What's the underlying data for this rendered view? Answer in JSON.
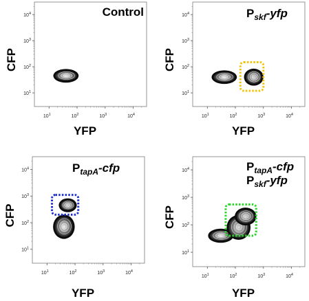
{
  "chart_data": [
    {
      "type": "contour",
      "title": "Control",
      "xlabel": "YFP",
      "ylabel": "CFP",
      "xscale": "log",
      "yscale": "log",
      "xlim": [
        3,
        30000
      ],
      "ylim": [
        3,
        30000
      ],
      "x_ticks": [
        {
          "base": "10",
          "exp": "1",
          "value": 10
        },
        {
          "base": "10",
          "exp": "2",
          "value": 100
        },
        {
          "base": "10",
          "exp": "3",
          "value": 1000
        },
        {
          "base": "10",
          "exp": "4",
          "value": 10000
        }
      ],
      "y_ticks": [
        {
          "base": "10",
          "exp": "1",
          "value": 10
        },
        {
          "base": "10",
          "exp": "2",
          "value": 100
        },
        {
          "base": "10",
          "exp": "3",
          "value": 1000
        },
        {
          "base": "10",
          "exp": "4",
          "value": 10000
        }
      ],
      "populations": [
        {
          "x_center": 40,
          "y_center": 45,
          "x_spread": 0.3,
          "y_spread": 0.15
        }
      ],
      "gate": null
    },
    {
      "type": "contour",
      "title": "P_skf-yfp",
      "title_parts": {
        "main": "P",
        "sub": "skf",
        "rest": "-yfp"
      },
      "xlabel": "YFP",
      "ylabel": "CFP",
      "xscale": "log",
      "yscale": "log",
      "xlim": [
        3,
        30000
      ],
      "ylim": [
        3,
        30000
      ],
      "x_ticks": [
        {
          "base": "10",
          "exp": "1",
          "value": 10
        },
        {
          "base": "10",
          "exp": "2",
          "value": 100
        },
        {
          "base": "10",
          "exp": "3",
          "value": 1000
        },
        {
          "base": "10",
          "exp": "4",
          "value": 10000
        }
      ],
      "y_ticks": [
        {
          "base": "10",
          "exp": "1",
          "value": 10
        },
        {
          "base": "10",
          "exp": "2",
          "value": 100
        },
        {
          "base": "10",
          "exp": "3",
          "value": 1000
        },
        {
          "base": "10",
          "exp": "4",
          "value": 10000
        }
      ],
      "populations": [
        {
          "x_center": 40,
          "y_center": 40,
          "x_spread": 0.3,
          "y_spread": 0.15
        },
        {
          "x_center": 450,
          "y_center": 40,
          "x_spread": 0.22,
          "y_spread": 0.2
        }
      ],
      "gate": {
        "x": [
          150,
          1000
        ],
        "y": [
          12,
          150
        ],
        "color": "#f2c50c"
      }
    },
    {
      "type": "contour",
      "title": "P_tapA-cfp",
      "title_parts": {
        "main": "P",
        "sub": "tapA",
        "rest": "-cfp"
      },
      "xlabel": "YFP",
      "ylabel": "CFP",
      "xscale": "log",
      "yscale": "log",
      "xlim": [
        3,
        30000
      ],
      "ylim": [
        3,
        30000
      ],
      "x_ticks": [
        {
          "base": "10",
          "exp": "1",
          "value": 10
        },
        {
          "base": "10",
          "exp": "2",
          "value": 100
        },
        {
          "base": "10",
          "exp": "3",
          "value": 1000
        },
        {
          "base": "10",
          "exp": "4",
          "value": 10000
        }
      ],
      "y_ticks": [
        {
          "base": "10",
          "exp": "1",
          "value": 10
        },
        {
          "base": "10",
          "exp": "2",
          "value": 100
        },
        {
          "base": "10",
          "exp": "3",
          "value": 1000
        },
        {
          "base": "10",
          "exp": "4",
          "value": 10000
        }
      ],
      "populations": [
        {
          "x_center": 40,
          "y_center": 70,
          "x_spread": 0.25,
          "y_spread": 0.3
        },
        {
          "x_center": 55,
          "y_center": 450,
          "x_spread": 0.2,
          "y_spread": 0.15
        }
      ],
      "gate": {
        "x": [
          15,
          130
        ],
        "y": [
          200,
          1100
        ],
        "color": "#1f2fcf"
      }
    },
    {
      "type": "contour",
      "title": "P_tapA-cfp P_skf-yfp",
      "title_lines": [
        {
          "main": "P",
          "sub": "tapA",
          "rest": "-cfp"
        },
        {
          "main": "P",
          "sub": "skf",
          "rest": "-yfp"
        }
      ],
      "xlabel": "YFP",
      "ylabel": "CFP",
      "xscale": "log",
      "yscale": "log",
      "xlim": [
        3,
        30000
      ],
      "ylim": [
        3,
        30000
      ],
      "x_ticks": [
        {
          "base": "10",
          "exp": "1",
          "value": 10
        },
        {
          "base": "10",
          "exp": "2",
          "value": 100
        },
        {
          "base": "10",
          "exp": "3",
          "value": 1000
        },
        {
          "base": "10",
          "exp": "4",
          "value": 10000
        }
      ],
      "y_ticks": [
        {
          "base": "10",
          "exp": "1",
          "value": 10
        },
        {
          "base": "10",
          "exp": "2",
          "value": 100
        },
        {
          "base": "10",
          "exp": "3",
          "value": 1000
        },
        {
          "base": "10",
          "exp": "4",
          "value": 10000
        }
      ],
      "populations": [
        {
          "x_center": 30,
          "y_center": 40,
          "x_spread": 0.3,
          "y_spread": 0.15
        },
        {
          "x_center": 130,
          "y_center": 80,
          "x_spread": 0.28,
          "y_spread": 0.3
        },
        {
          "x_center": 230,
          "y_center": 200,
          "x_spread": 0.25,
          "y_spread": 0.2
        }
      ],
      "gate": {
        "x": [
          45,
          550
        ],
        "y": [
          40,
          550
        ],
        "color": "#2ed52e"
      }
    }
  ]
}
